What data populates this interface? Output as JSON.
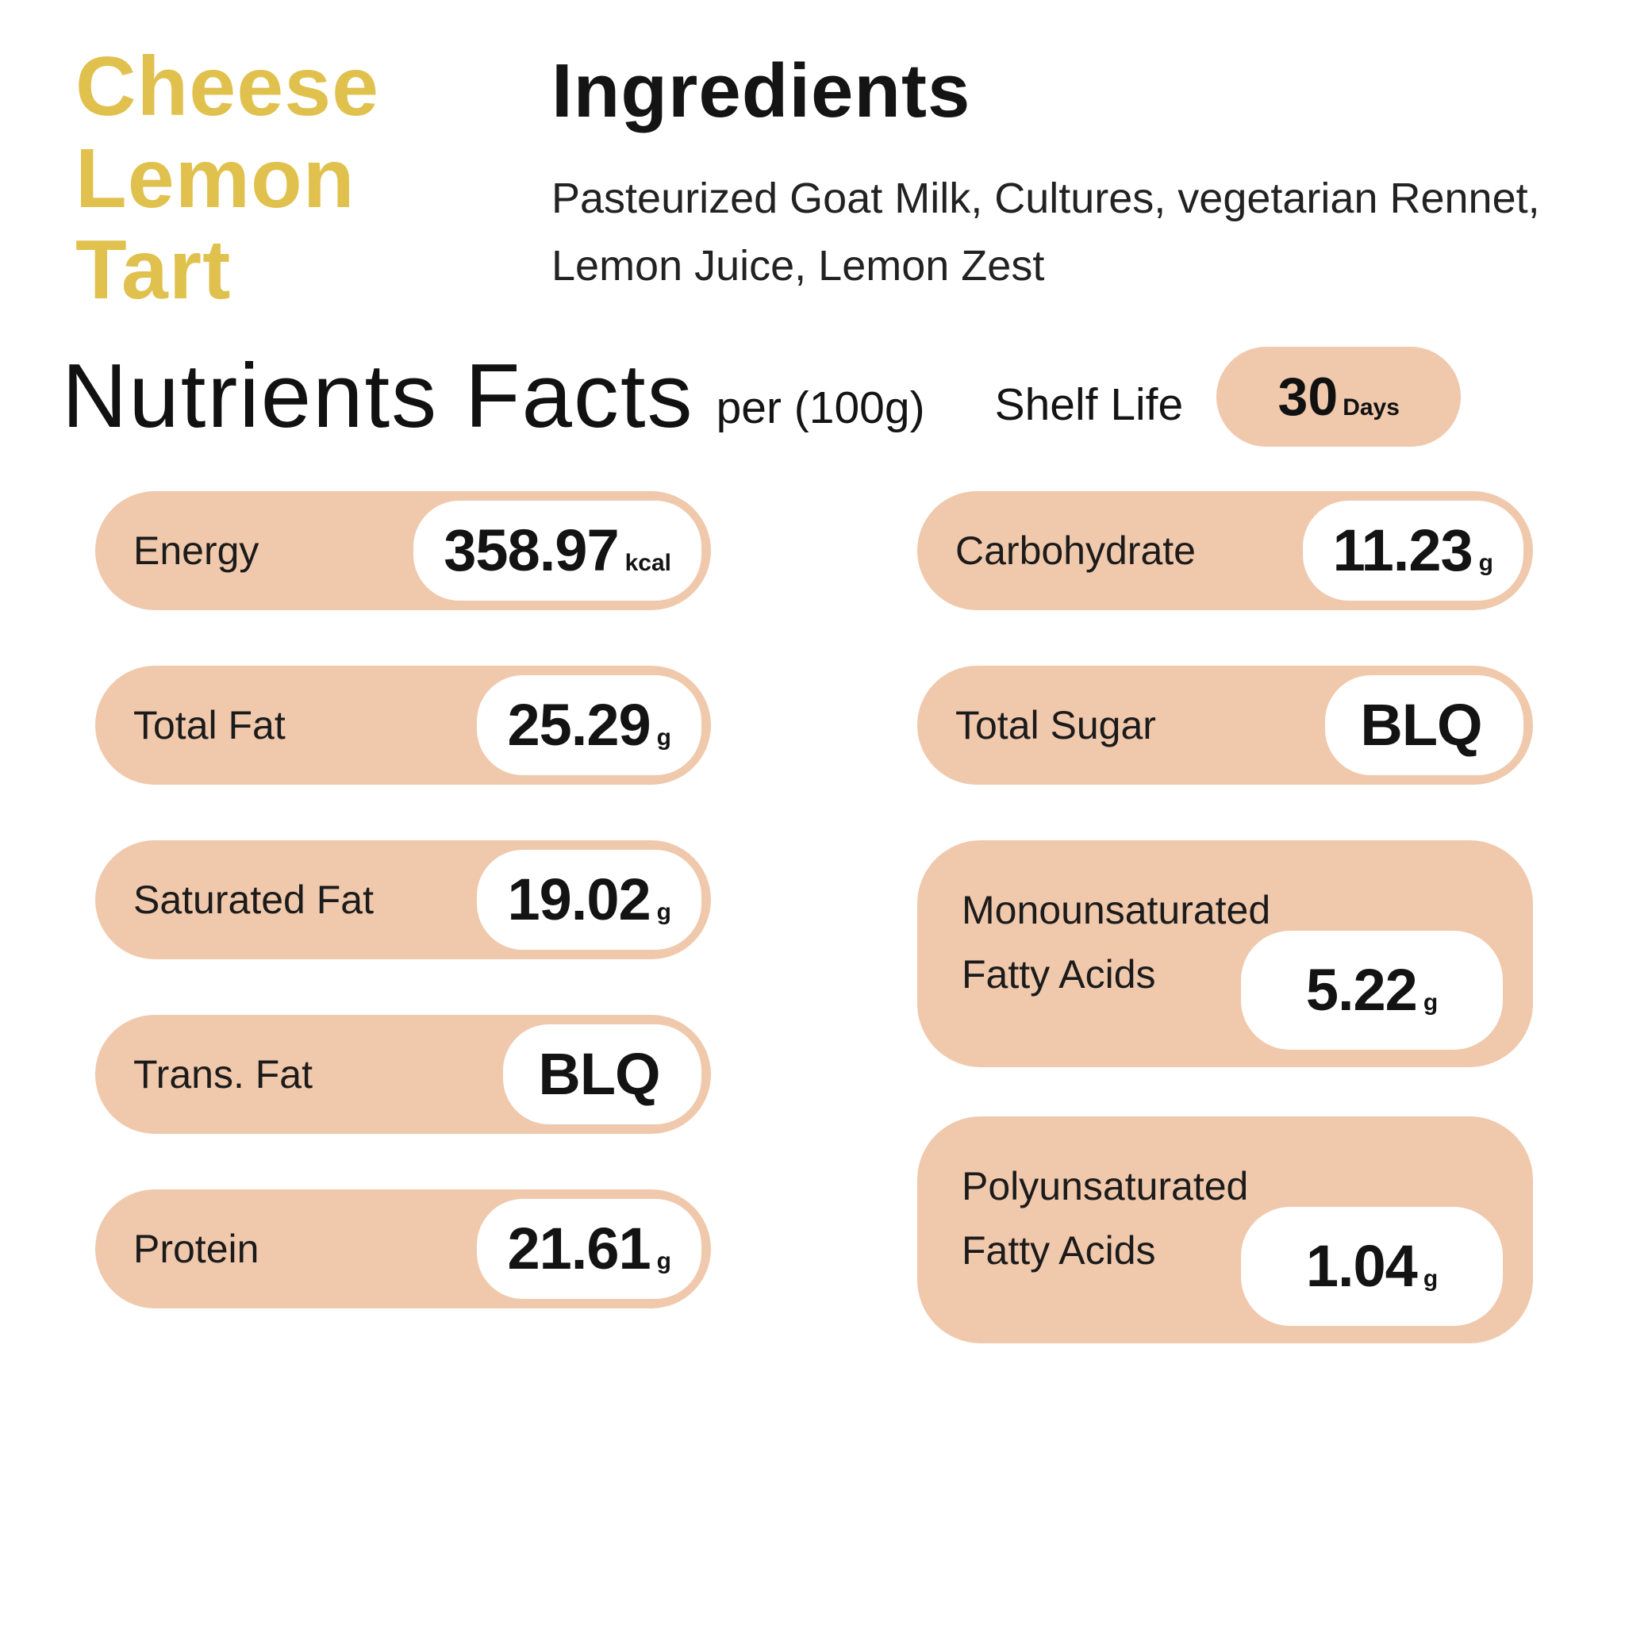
{
  "product": {
    "title_line1": "Cheese",
    "title_line2": "Lemon",
    "title_line3": "Tart"
  },
  "ingredients": {
    "heading": "Ingredients",
    "text": "Pasteurized Goat Milk, Cultures, vegetarian Rennet, Lemon Juice, Lemon Zest"
  },
  "nutrition": {
    "heading": "Nutrients Facts",
    "per": "per (100g)",
    "shelf_life_label": "Shelf Life",
    "shelf_life_value": "30",
    "shelf_life_unit": "Days",
    "left_column": [
      {
        "label": "Energy",
        "value": "358.97",
        "unit": "kcal"
      },
      {
        "label": "Total Fat",
        "value": "25.29",
        "unit": "g"
      },
      {
        "label": "Saturated Fat",
        "value": "19.02",
        "unit": "g"
      },
      {
        "label": "Trans. Fat",
        "value": "BLQ",
        "unit": ""
      },
      {
        "label": "Protein",
        "value": "21.61",
        "unit": "g"
      }
    ],
    "right_column": [
      {
        "label": "Carbohydrate",
        "value": "11.23",
        "unit": "g"
      },
      {
        "label": "Total Sugar",
        "value": "BLQ",
        "unit": ""
      },
      {
        "label_line1": "Monounsaturated",
        "label_line2": "Fatty Acids",
        "value": "5.22",
        "unit": "g"
      },
      {
        "label_line1": "Polyunsaturated",
        "label_line2": "Fatty Acids",
        "value": "1.04",
        "unit": "g"
      }
    ]
  },
  "colors": {
    "accent_gold": "#E1C14D",
    "pill_peach": "#F0C8AC",
    "text_black": "#1B1B1B",
    "bubble_white": "#FFFFFF"
  }
}
